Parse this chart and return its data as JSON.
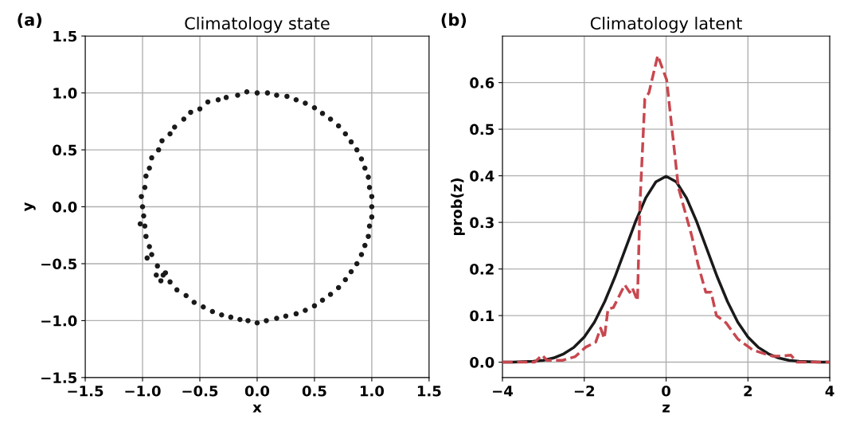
{
  "chart_data": [
    {
      "type": "scatter",
      "title": "Climatology state",
      "xlabel": "x",
      "ylabel": "y",
      "annotations": [
        "(a)"
      ],
      "grid": true,
      "marker": "circle",
      "xlim": [
        -1.5,
        1.5
      ],
      "ylim": [
        -1.5,
        1.5
      ],
      "xticks": [
        {
          "value": -1.5,
          "label": "−1.5"
        },
        {
          "value": -1.0,
          "label": "−1.0"
        },
        {
          "value": -0.5,
          "label": "−0.5"
        },
        {
          "value": 0.0,
          "label": "0.0"
        },
        {
          "value": 0.5,
          "label": "0.5"
        },
        {
          "value": 1.0,
          "label": "1.0"
        },
        {
          "value": 1.5,
          "label": "1.5"
        }
      ],
      "yticks": [
        {
          "value": -1.5,
          "label": "−1.5"
        },
        {
          "value": -1.0,
          "label": "−1.0"
        },
        {
          "value": -0.5,
          "label": "−0.5"
        },
        {
          "value": 0.0,
          "label": "0.0"
        },
        {
          "value": 0.5,
          "label": "0.5"
        },
        {
          "value": 1.0,
          "label": "1.0"
        },
        {
          "value": 1.5,
          "label": "1.5"
        }
      ],
      "series": [
        {
          "color": "#1a1a1a",
          "x": [
            1.0,
            1.0,
            0.98,
            0.97,
            0.94,
            0.91,
            0.87,
            0.82,
            0.77,
            0.71,
            0.64,
            0.57,
            0.5,
            0.42,
            0.34,
            0.26,
            0.17,
            0.09,
            0.0,
            -0.09,
            -0.17,
            -0.27,
            -0.34,
            -0.43,
            -0.5,
            -0.58,
            -0.64,
            -0.72,
            -0.76,
            -0.83,
            -0.86,
            -0.92,
            -0.94,
            -0.97,
            -0.98,
            -1.01,
            -1.0,
            -0.99,
            -0.98,
            -0.97,
            -0.94,
            -0.92,
            -0.87,
            -0.82,
            -0.76,
            -0.7,
            -0.62,
            -0.55,
            -0.47,
            -0.39,
            -0.31,
            -0.23,
            -0.15,
            -0.08,
            0.0,
            0.08,
            0.17,
            0.25,
            0.34,
            0.42,
            0.5,
            0.57,
            0.64,
            0.71,
            0.77,
            0.82,
            0.87,
            0.91,
            0.94,
            0.97,
            0.98,
            1.0,
            -0.88,
            -0.84,
            -0.8,
            -1.02,
            -0.96
          ],
          "values": [
            0.0,
            0.09,
            0.17,
            0.26,
            0.34,
            0.42,
            0.5,
            0.57,
            0.64,
            0.71,
            0.77,
            0.82,
            0.87,
            0.91,
            0.94,
            0.97,
            0.98,
            1.0,
            1.0,
            1.01,
            0.98,
            0.96,
            0.94,
            0.92,
            0.86,
            0.83,
            0.77,
            0.7,
            0.64,
            0.58,
            0.5,
            0.43,
            0.34,
            0.27,
            0.17,
            0.09,
            0.0,
            -0.08,
            -0.17,
            -0.26,
            -0.35,
            -0.42,
            -0.52,
            -0.6,
            -0.66,
            -0.73,
            -0.78,
            -0.84,
            -0.88,
            -0.92,
            -0.95,
            -0.97,
            -0.99,
            -1.0,
            -1.02,
            -1.0,
            -0.98,
            -0.96,
            -0.94,
            -0.91,
            -0.87,
            -0.82,
            -0.77,
            -0.71,
            -0.64,
            -0.57,
            -0.5,
            -0.42,
            -0.34,
            -0.26,
            -0.17,
            -0.09,
            -0.6,
            -0.65,
            -0.58,
            -0.15,
            -0.45
          ]
        }
      ]
    },
    {
      "type": "line",
      "title": "Climatology latent",
      "xlabel": "z",
      "ylabel": "prob(z)",
      "annotations": [
        "(b)"
      ],
      "grid": true,
      "xlim": [
        -4,
        4
      ],
      "ylim": [
        -0.033,
        0.7
      ],
      "xticks": [
        {
          "value": -4,
          "label": "−4"
        },
        {
          "value": -2,
          "label": "−2"
        },
        0,
        2,
        4
      ],
      "yticks": [
        {
          "value": 0.0,
          "label": "0.0"
        },
        0.1,
        0.2,
        0.3,
        0.4,
        0.5,
        0.6
      ],
      "series": [
        {
          "color": "#1a1a1a",
          "line_style": "solid",
          "x": [
            -4.0,
            -3.75,
            -3.5,
            -3.25,
            -3.0,
            -2.75,
            -2.5,
            -2.25,
            -2.0,
            -1.75,
            -1.5,
            -1.25,
            -1.0,
            -0.75,
            -0.5,
            -0.25,
            0.0,
            0.25,
            0.5,
            0.75,
            1.0,
            1.25,
            1.5,
            1.75,
            2.0,
            2.25,
            2.5,
            2.75,
            3.0,
            3.25,
            3.5,
            3.75,
            4.0
          ],
          "values": [
            0.0,
            0.0,
            0.001,
            0.002,
            0.004,
            0.009,
            0.018,
            0.032,
            0.054,
            0.086,
            0.13,
            0.183,
            0.242,
            0.301,
            0.352,
            0.387,
            0.399,
            0.387,
            0.352,
            0.301,
            0.242,
            0.183,
            0.13,
            0.086,
            0.054,
            0.032,
            0.018,
            0.009,
            0.004,
            0.002,
            0.001,
            0.0,
            0.0
          ]
        },
        {
          "color": "#c8474f",
          "line_style": "dashed",
          "x": [
            -4.0,
            -3.21,
            -3.03,
            -2.91,
            -2.53,
            -2.22,
            -1.97,
            -1.72,
            -1.6,
            -1.51,
            -1.42,
            -1.29,
            -1.01,
            -0.89,
            -0.83,
            -0.7,
            -0.64,
            -0.52,
            -0.42,
            -0.205,
            0.013,
            0.3,
            0.63,
            0.78,
            0.97,
            1.1,
            1.23,
            1.47,
            1.75,
            2.12,
            2.59,
            2.77,
            3.05,
            3.2,
            4.0
          ],
          "values": [
            0.0,
            0.0,
            0.015,
            0.004,
            0.004,
            0.012,
            0.032,
            0.043,
            0.073,
            0.051,
            0.114,
            0.117,
            0.166,
            0.15,
            0.16,
            0.132,
            0.337,
            0.565,
            0.578,
            0.658,
            0.606,
            0.375,
            0.27,
            0.21,
            0.15,
            0.15,
            0.1,
            0.084,
            0.05,
            0.026,
            0.013,
            0.013,
            0.015,
            0.0,
            0.0
          ]
        }
      ]
    }
  ]
}
